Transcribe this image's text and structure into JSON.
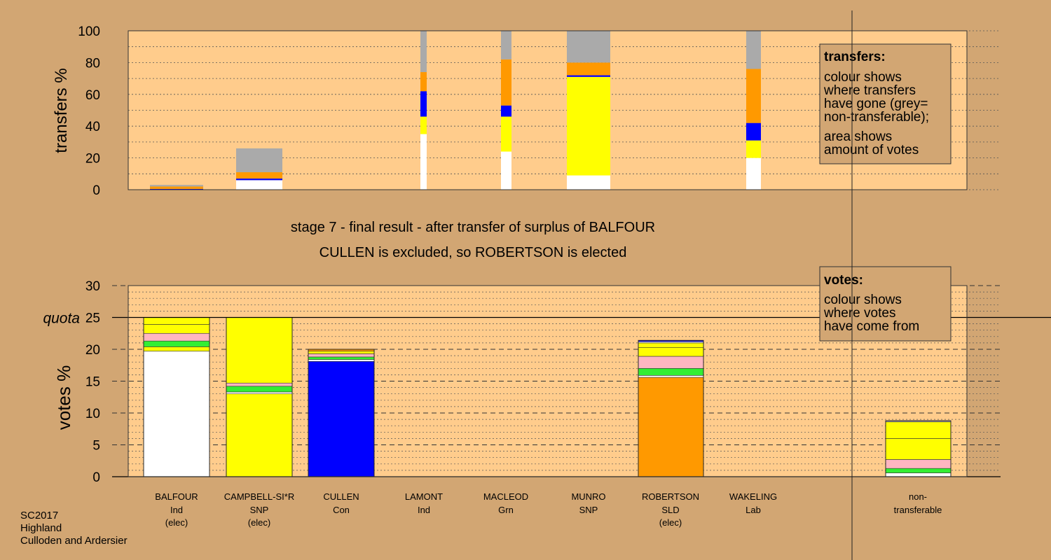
{
  "chart_data": [
    {
      "type": "bar",
      "stacked": true,
      "panel": "transfers",
      "ylabel": "transfers %",
      "ylim": [
        0,
        100
      ],
      "yticks": [
        0,
        20,
        40,
        60,
        80,
        100
      ],
      "grid": true,
      "note": {
        "title": "transfers:",
        "lines": [
          "colour shows",
          "where transfers",
          "have gone (grey=",
          "non-transferable);",
          "area shows",
          "amount of votes"
        ]
      },
      "bars": [
        {
          "candidate": "BALFOUR",
          "segments": [
            {
              "color": "#0000ff",
              "value": 0.5
            },
            {
              "color": "#ff9900",
              "value": 1.5
            },
            {
              "color": "#aaaaaa",
              "value": 1.0
            }
          ]
        },
        {
          "candidate": "CAMPBELL-SI*R",
          "segments": [
            {
              "color": "#ffffff",
              "value": 6
            },
            {
              "color": "#0000ff",
              "value": 1
            },
            {
              "color": "#ff9900",
              "value": 4
            },
            {
              "color": "#aaaaaa",
              "value": 15
            }
          ]
        },
        {
          "candidate": "LAMONT",
          "segments": [
            {
              "color": "#ffffff",
              "value": 35
            },
            {
              "color": "#ffff00",
              "value": 11
            },
            {
              "color": "#0000ff",
              "value": 16
            },
            {
              "color": "#ff9900",
              "value": 12
            },
            {
              "color": "#aaaaaa",
              "value": 26
            }
          ]
        },
        {
          "candidate": "MACLEOD",
          "segments": [
            {
              "color": "#ffffff",
              "value": 24
            },
            {
              "color": "#ffff00",
              "value": 22
            },
            {
              "color": "#0000ff",
              "value": 7
            },
            {
              "color": "#ff9900",
              "value": 29
            },
            {
              "color": "#aaaaaa",
              "value": 18
            }
          ]
        },
        {
          "candidate": "MUNRO",
          "segments": [
            {
              "color": "#ffffff",
              "value": 9
            },
            {
              "color": "#ffff00",
              "value": 62
            },
            {
              "color": "#0000ff",
              "value": 1
            },
            {
              "color": "#ff9900",
              "value": 8
            },
            {
              "color": "#aaaaaa",
              "value": 20
            }
          ]
        },
        {
          "candidate": "WAKELING",
          "segments": [
            {
              "color": "#ffffff",
              "value": 20
            },
            {
              "color": "#ffff00",
              "value": 11
            },
            {
              "color": "#0000ff",
              "value": 11
            },
            {
              "color": "#ff9900",
              "value": 34
            },
            {
              "color": "#aaaaaa",
              "value": 24
            }
          ]
        }
      ]
    },
    {
      "type": "bar",
      "stacked": true,
      "panel": "votes",
      "ylabel": "votes %",
      "ylim": [
        0,
        30
      ],
      "yticks": [
        0,
        5,
        10,
        15,
        20,
        25,
        30
      ],
      "quota": 25,
      "quota_label": "quota",
      "grid": true,
      "note": {
        "title": "votes:",
        "lines": [
          "colour shows",
          "where votes",
          "have come from"
        ]
      },
      "bars": [
        {
          "candidate": "BALFOUR",
          "segments": [
            {
              "color": "#ffffff",
              "value": 19.7
            },
            {
              "color": "#ffff00",
              "value": 0.7
            },
            {
              "color": "#33ee33",
              "value": 0.9
            },
            {
              "color": "#ffb6c1",
              "value": 1.2
            },
            {
              "color": "#ffff00",
              "value": 1.4
            },
            {
              "color": "#ffff00",
              "value": 1.1
            }
          ]
        },
        {
          "candidate": "CAMPBELL-SI*R",
          "segments": [
            {
              "color": "#ffff00",
              "value": 13.0
            },
            {
              "color": "#ffffff",
              "value": 0.3
            },
            {
              "color": "#33ee33",
              "value": 0.9
            },
            {
              "color": "#ffb6c1",
              "value": 0.5
            },
            {
              "color": "#ffff00",
              "value": 10.3
            }
          ]
        },
        {
          "candidate": "CULLEN",
          "segments": [
            {
              "color": "#0000ff",
              "value": 18.1
            },
            {
              "color": "#ffffff",
              "value": 0.3
            },
            {
              "color": "#33ee33",
              "value": 0.4
            },
            {
              "color": "#ffb6c1",
              "value": 0.5
            },
            {
              "color": "#ffff00",
              "value": 0.4
            },
            {
              "color": "#ff9900",
              "value": 0.3
            }
          ]
        },
        {
          "candidate": "LAMONT",
          "segments": []
        },
        {
          "candidate": "MACLEOD",
          "segments": []
        },
        {
          "candidate": "MUNRO",
          "segments": []
        },
        {
          "candidate": "ROBERTSON",
          "segments": [
            {
              "color": "#ff9900",
              "value": 15.6
            },
            {
              "color": "#ffffff",
              "value": 0.3
            },
            {
              "color": "#33ee33",
              "value": 1.1
            },
            {
              "color": "#ffb6c1",
              "value": 1.9
            },
            {
              "color": "#ffff00",
              "value": 1.4
            },
            {
              "color": "#ffff00",
              "value": 0.7
            },
            {
              "color": "#ffffff",
              "value": 0.2
            },
            {
              "color": "#0000ff",
              "value": 0.2
            }
          ]
        },
        {
          "candidate": "WAKELING",
          "segments": []
        },
        {
          "candidate": "non-transferable",
          "segments": [
            {
              "color": "#ffffff",
              "value": 0.6
            },
            {
              "color": "#33ee33",
              "value": 0.7
            },
            {
              "color": "#ffb6c1",
              "value": 1.4
            },
            {
              "color": "#ffff00",
              "value": 3.3
            },
            {
              "color": "#ffff00",
              "value": 2.6
            },
            {
              "color": "#aaaaaa",
              "value": 0.2
            }
          ]
        }
      ]
    }
  ],
  "stage_title": "stage 7 - final result - after transfer of surplus of BALFOUR",
  "stage_subtitle": "CULLEN is excluded, so ROBERTSON is elected",
  "candidates": [
    {
      "name": "BALFOUR",
      "party": "Ind",
      "status": "(elec)"
    },
    {
      "name": "CAMPBELL-SI*R",
      "party": "SNP",
      "status": "(elec)"
    },
    {
      "name": "CULLEN",
      "party": "Con",
      "status": ""
    },
    {
      "name": "LAMONT",
      "party": "Ind",
      "status": ""
    },
    {
      "name": "MACLEOD",
      "party": "Grn",
      "status": ""
    },
    {
      "name": "MUNRO",
      "party": "SNP",
      "status": ""
    },
    {
      "name": "ROBERTSON",
      "party": "SLD",
      "status": "(elec)"
    },
    {
      "name": "WAKELING",
      "party": "Lab",
      "status": ""
    },
    {
      "name": "non-",
      "party": "transferable",
      "status": ""
    }
  ],
  "footer": {
    "election": "SC2017",
    "council": "Highland",
    "ward": "Culloden and Ardersier"
  },
  "colors": {
    "background": "#d2a673",
    "plot_area": "#ffcc8c",
    "grid": "#555555"
  }
}
